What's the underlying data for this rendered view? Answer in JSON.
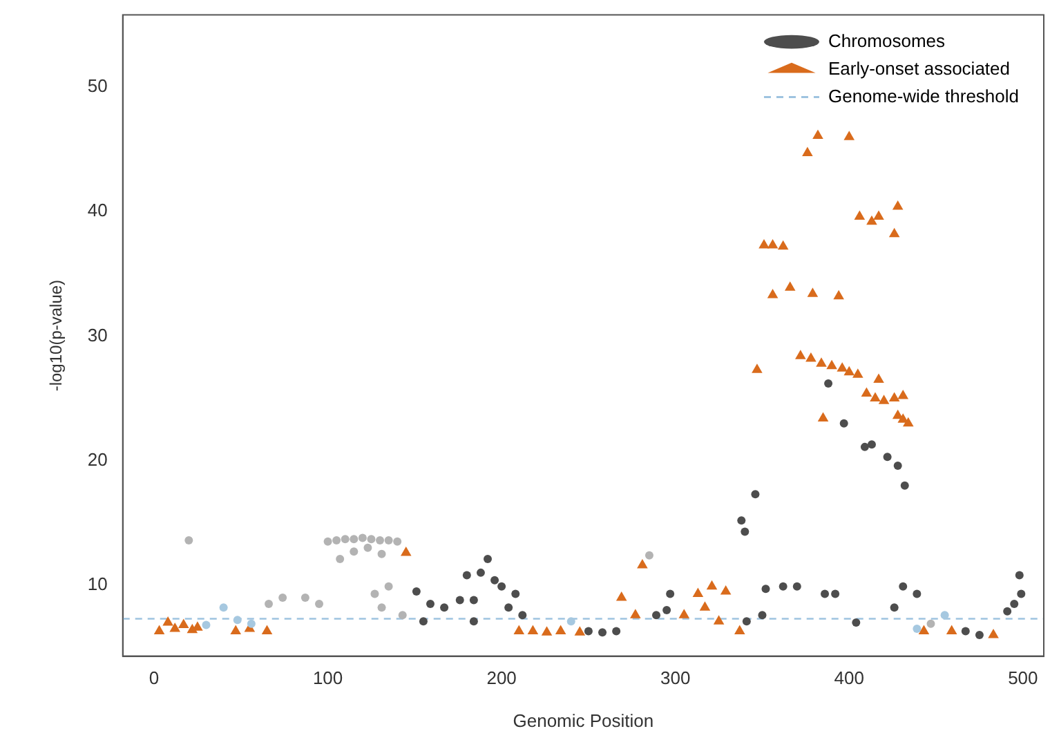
{
  "chart_data": {
    "type": "scatter",
    "xlabel": "Genomic Position",
    "ylabel": "-log10(p-value)",
    "xlim": [
      -18,
      512
    ],
    "xticks": [
      0,
      100,
      200,
      300,
      400,
      500
    ],
    "ylim": [
      4.3,
      55.8
    ],
    "yticks": [
      10,
      20,
      30,
      40,
      50
    ],
    "grid": false,
    "legend": "top right",
    "series": [
      {
        "name": "Chromosomes",
        "marker": "circle",
        "color": "#4d4d4d",
        "x": [
          20,
          30,
          40,
          48,
          56,
          66,
          74,
          87,
          95,
          100,
          105,
          110,
          115,
          120,
          125,
          130,
          135,
          140,
          107,
          115,
          123,
          131,
          135,
          127,
          131,
          143,
          151,
          159,
          167,
          176,
          184,
          188,
          192,
          196,
          200,
          208,
          212,
          184,
          155,
          204,
          180,
          240,
          250,
          258,
          266,
          285,
          289,
          297,
          295,
          341,
          350,
          338,
          340,
          346,
          352,
          362,
          370,
          386,
          392,
          388,
          397,
          404,
          409,
          413,
          422,
          428,
          432,
          431,
          439,
          426,
          439,
          447,
          455,
          467,
          475,
          491,
          495,
          499,
          498
        ],
        "values": [
          13.6,
          6.8,
          8.2,
          7.2,
          6.9,
          8.5,
          9,
          9,
          8.5,
          13.5,
          13.6,
          13.7,
          13.7,
          13.8,
          13.7,
          13.6,
          13.6,
          13.5,
          12.1,
          12.7,
          13,
          12.5,
          9.9,
          9.3,
          8.2,
          7.6,
          9.5,
          8.5,
          8.2,
          8.8,
          8.8,
          11,
          12.1,
          10.4,
          9.9,
          9.3,
          7.6,
          7.1,
          7.1,
          8.2,
          10.8,
          7.1,
          6.3,
          6.2,
          6.3,
          12.4,
          7.6,
          9.3,
          8,
          7.1,
          7.6,
          15.2,
          14.3,
          17.3,
          9.7,
          9.9,
          9.9,
          9.3,
          9.3,
          26.2,
          23,
          7,
          21.1,
          21.3,
          20.3,
          19.6,
          18,
          9.9,
          9.3,
          8.2,
          6.5,
          6.9,
          7.6,
          6.3,
          6,
          7.9,
          8.5,
          9.3,
          10.8
        ],
        "colors": [
          "#b3b3b3",
          "#a6c8e0",
          "#a6c8e0",
          "#a6c8e0",
          "#a6c8e0",
          "#b3b3b3",
          "#b3b3b3",
          "#b3b3b3",
          "#b3b3b3",
          "#b3b3b3",
          "#b3b3b3",
          "#b3b3b3",
          "#b3b3b3",
          "#b3b3b3",
          "#b3b3b3",
          "#b3b3b3",
          "#b3b3b3",
          "#b3b3b3",
          "#b3b3b3",
          "#b3b3b3",
          "#b3b3b3",
          "#b3b3b3",
          "#b3b3b3",
          "#b3b3b3",
          "#b3b3b3",
          "#b3b3b3",
          "#4d4d4d",
          "#4d4d4d",
          "#4d4d4d",
          "#4d4d4d",
          "#4d4d4d",
          "#4d4d4d",
          "#4d4d4d",
          "#4d4d4d",
          "#4d4d4d",
          "#4d4d4d",
          "#4d4d4d",
          "#4d4d4d",
          "#4d4d4d",
          "#4d4d4d",
          "#4d4d4d",
          "#a6c8e0",
          "#4d4d4d",
          "#4d4d4d",
          "#4d4d4d",
          "#b3b3b3",
          "#4d4d4d",
          "#4d4d4d",
          "#4d4d4d",
          "#4d4d4d",
          "#4d4d4d",
          "#4d4d4d",
          "#4d4d4d",
          "#4d4d4d",
          "#4d4d4d",
          "#4d4d4d",
          "#4d4d4d",
          "#4d4d4d",
          "#4d4d4d",
          "#4d4d4d",
          "#4d4d4d",
          "#4d4d4d",
          "#4d4d4d",
          "#4d4d4d",
          "#4d4d4d",
          "#4d4d4d",
          "#4d4d4d",
          "#4d4d4d",
          "#4d4d4d",
          "#4d4d4d",
          "#a6c8e0",
          "#b3b3b3",
          "#a6c8e0",
          "#4d4d4d",
          "#4d4d4d",
          "#4d4d4d",
          "#4d4d4d",
          "#4d4d4d",
          "#4d4d4d"
        ]
      },
      {
        "name": "Early-onset associated",
        "marker": "triangle",
        "color": "#d96b1c",
        "x": [
          3,
          8,
          12,
          17,
          22,
          25,
          47,
          55,
          65,
          145,
          210,
          218,
          226,
          234,
          245,
          269,
          281,
          277,
          305,
          313,
          321,
          329,
          317,
          325,
          337,
          347,
          351,
          356,
          362,
          356,
          366,
          376,
          382,
          400,
          379,
          394,
          372,
          378,
          384,
          390,
          396,
          400,
          405,
          385,
          406,
          413,
          417,
          426,
          428,
          417,
          410,
          415,
          420,
          426,
          431,
          428,
          431,
          434,
          443,
          459,
          483
        ],
        "values": [
          6.3,
          7,
          6.5,
          6.8,
          6.4,
          6.6,
          6.3,
          6.5,
          6.3,
          12.6,
          6.3,
          6.3,
          6.2,
          6.3,
          6.2,
          9,
          11.6,
          7.6,
          7.6,
          9.3,
          9.9,
          9.5,
          8.2,
          7.1,
          6.3,
          27.3,
          37.3,
          37.3,
          37.2,
          33.3,
          33.9,
          44.7,
          46.1,
          46,
          33.4,
          33.2,
          28.4,
          28.2,
          27.8,
          27.6,
          27.4,
          27.1,
          26.9,
          23.4,
          39.6,
          39.2,
          39.6,
          38.2,
          40.4,
          26.5,
          25.4,
          25,
          24.8,
          25,
          25.2,
          23.6,
          23.3,
          23,
          6.3,
          6.3,
          6
        ]
      }
    ],
    "ref_lines": [
      {
        "axis": "y",
        "value": 7.3,
        "label": "Genome-wide threshold",
        "color": "#9ec3e0",
        "line_style": "dashed"
      }
    ]
  }
}
